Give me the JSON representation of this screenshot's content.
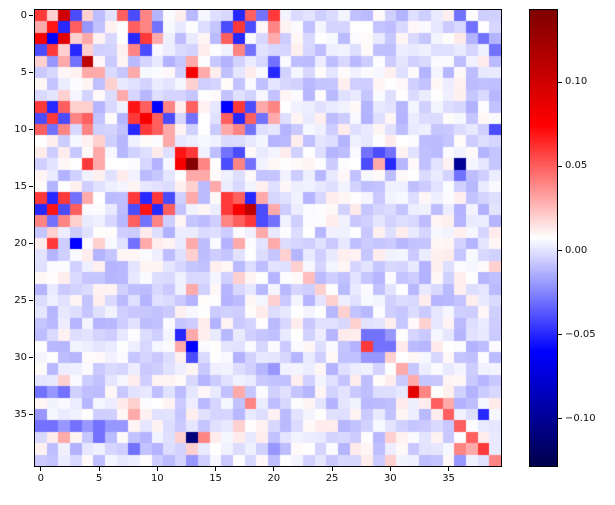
{
  "chart_data": {
    "type": "heatmap",
    "title": "",
    "xlabel": "",
    "ylabel": "",
    "colormap": "seismic",
    "size": 40,
    "vmin": -0.128,
    "vmax": 0.143,
    "grid": false,
    "xticks": [
      0,
      5,
      10,
      15,
      20,
      25,
      30,
      35
    ],
    "yticks": [
      0,
      5,
      10,
      15,
      20,
      25,
      30,
      35
    ],
    "colorbar_ticks": [
      0.1,
      0.05,
      0.0,
      -0.05,
      -0.1
    ],
    "colorbar_tick_labels": [
      "0.10",
      "0.05",
      "0.00",
      "−0.05",
      "−0.10"
    ],
    "default_value": 0.0,
    "noise_amplitude": 0.013,
    "noise_seed": 12345,
    "cells": [
      [
        0,
        0,
        0.06
      ],
      [
        0,
        1,
        0.02
      ],
      [
        0,
        2,
        0.1
      ],
      [
        0,
        3,
        -0.04
      ],
      [
        0,
        4,
        0.02
      ],
      [
        1,
        0,
        0.03
      ],
      [
        1,
        1,
        0.07
      ],
      [
        1,
        2,
        -0.05
      ],
      [
        1,
        3,
        0.05
      ],
      [
        1,
        4,
        -0.02
      ],
      [
        2,
        0,
        0.08
      ],
      [
        2,
        1,
        -0.06
      ],
      [
        2,
        2,
        0.09
      ],
      [
        2,
        3,
        0.02
      ],
      [
        2,
        4,
        0.03
      ],
      [
        3,
        0,
        -0.04
      ],
      [
        3,
        1,
        0.06
      ],
      [
        3,
        2,
        0.02
      ],
      [
        3,
        3,
        -0.05
      ],
      [
        3,
        4,
        0.02
      ],
      [
        4,
        0,
        0.02
      ],
      [
        4,
        1,
        -0.02
      ],
      [
        4,
        2,
        0.03
      ],
      [
        4,
        3,
        -0.03
      ],
      [
        4,
        4,
        0.11
      ],
      [
        0,
        7,
        0.05
      ],
      [
        0,
        8,
        -0.04
      ],
      [
        0,
        9,
        0.04
      ],
      [
        0,
        17,
        -0.05
      ],
      [
        0,
        18,
        0.05
      ],
      [
        0,
        19,
        -0.03
      ],
      [
        0,
        20,
        0.06
      ],
      [
        0,
        36,
        -0.03
      ],
      [
        1,
        8,
        0.05
      ],
      [
        1,
        9,
        0.04
      ],
      [
        1,
        10,
        -0.03
      ],
      [
        1,
        16,
        -0.04
      ],
      [
        1,
        17,
        0.06
      ],
      [
        1,
        18,
        -0.04
      ],
      [
        1,
        20,
        0.04
      ],
      [
        1,
        37,
        -0.03
      ],
      [
        2,
        8,
        -0.05
      ],
      [
        2,
        9,
        0.06
      ],
      [
        2,
        10,
        0.03
      ],
      [
        2,
        16,
        0.05
      ],
      [
        2,
        17,
        -0.05
      ],
      [
        2,
        20,
        0.03
      ],
      [
        2,
        38,
        -0.03
      ],
      [
        3,
        8,
        0.04
      ],
      [
        3,
        9,
        -0.04
      ],
      [
        3,
        17,
        0.04
      ],
      [
        3,
        18,
        -0.03
      ],
      [
        3,
        39,
        -0.03
      ],
      [
        4,
        13,
        0.03
      ],
      [
        4,
        20,
        -0.03
      ],
      [
        5,
        4,
        0.03
      ],
      [
        5,
        5,
        0.03
      ],
      [
        5,
        8,
        0.03
      ],
      [
        5,
        13,
        0.08
      ],
      [
        5,
        14,
        0.03
      ],
      [
        5,
        20,
        -0.05
      ],
      [
        6,
        6,
        0.02
      ],
      [
        6,
        13,
        0.02
      ],
      [
        7,
        2,
        0.02
      ],
      [
        7,
        7,
        0.03
      ],
      [
        8,
        0,
        0.06
      ],
      [
        8,
        1,
        -0.05
      ],
      [
        8,
        2,
        0.05
      ],
      [
        8,
        3,
        0.02
      ],
      [
        8,
        4,
        0.02
      ],
      [
        9,
        0,
        -0.04
      ],
      [
        9,
        1,
        0.06
      ],
      [
        9,
        2,
        -0.04
      ],
      [
        9,
        3,
        0.04
      ],
      [
        9,
        4,
        0.05
      ],
      [
        10,
        0,
        0.05
      ],
      [
        10,
        1,
        -0.03
      ],
      [
        10,
        2,
        0.04
      ],
      [
        10,
        4,
        0.04
      ],
      [
        8,
        8,
        0.07
      ],
      [
        8,
        9,
        0.05
      ],
      [
        8,
        10,
        -0.06
      ],
      [
        8,
        11,
        0.04
      ],
      [
        9,
        8,
        0.06
      ],
      [
        9,
        9,
        0.08
      ],
      [
        9,
        10,
        0.05
      ],
      [
        9,
        11,
        -0.04
      ],
      [
        10,
        8,
        -0.05
      ],
      [
        10,
        9,
        0.06
      ],
      [
        10,
        10,
        0.05
      ],
      [
        10,
        11,
        0.03
      ],
      [
        8,
        13,
        0.05
      ],
      [
        9,
        13,
        -0.03
      ],
      [
        8,
        16,
        -0.06
      ],
      [
        8,
        17,
        0.06
      ],
      [
        8,
        18,
        -0.04
      ],
      [
        8,
        19,
        0.03
      ],
      [
        9,
        16,
        0.05
      ],
      [
        9,
        17,
        -0.05
      ],
      [
        9,
        18,
        0.05
      ],
      [
        9,
        19,
        -0.03
      ],
      [
        10,
        16,
        0.03
      ],
      [
        10,
        17,
        0.04
      ],
      [
        10,
        18,
        -0.03
      ],
      [
        8,
        20,
        0.04
      ],
      [
        9,
        20,
        0.03
      ],
      [
        10,
        39,
        -0.04
      ],
      [
        11,
        5,
        0.02
      ],
      [
        11,
        11,
        0.03
      ],
      [
        12,
        5,
        0.03
      ],
      [
        12,
        12,
        0.07
      ],
      [
        12,
        13,
        0.06
      ],
      [
        12,
        16,
        -0.03
      ],
      [
        12,
        17,
        -0.04
      ],
      [
        12,
        28,
        -0.03
      ],
      [
        12,
        29,
        -0.04
      ],
      [
        12,
        30,
        -0.03
      ],
      [
        13,
        4,
        0.06
      ],
      [
        13,
        5,
        0.03
      ],
      [
        13,
        12,
        0.08
      ],
      [
        13,
        13,
        0.14
      ],
      [
        13,
        14,
        0.04
      ],
      [
        13,
        16,
        -0.04
      ],
      [
        13,
        17,
        0.04
      ],
      [
        13,
        18,
        -0.03
      ],
      [
        13,
        28,
        -0.04
      ],
      [
        13,
        29,
        0.03
      ],
      [
        13,
        30,
        -0.05
      ],
      [
        13,
        36,
        -0.1
      ],
      [
        14,
        13,
        0.03
      ],
      [
        14,
        14,
        0.03
      ],
      [
        14,
        36,
        -0.03
      ],
      [
        15,
        13,
        0.02
      ],
      [
        15,
        15,
        0.03
      ],
      [
        16,
        0,
        0.06
      ],
      [
        16,
        1,
        -0.05
      ],
      [
        16,
        2,
        0.06
      ],
      [
        16,
        3,
        -0.03
      ],
      [
        16,
        4,
        0.03
      ],
      [
        17,
        0,
        -0.05
      ],
      [
        17,
        1,
        0.07
      ],
      [
        17,
        2,
        -0.04
      ],
      [
        17,
        3,
        0.05
      ],
      [
        18,
        0,
        0.04
      ],
      [
        18,
        1,
        -0.03
      ],
      [
        18,
        2,
        0.04
      ],
      [
        18,
        3,
        0.02
      ],
      [
        16,
        8,
        0.06
      ],
      [
        16,
        9,
        -0.05
      ],
      [
        16,
        10,
        0.06
      ],
      [
        16,
        11,
        -0.04
      ],
      [
        17,
        8,
        -0.04
      ],
      [
        17,
        9,
        0.07
      ],
      [
        17,
        10,
        -0.05
      ],
      [
        17,
        11,
        0.05
      ],
      [
        18,
        8,
        0.05
      ],
      [
        18,
        9,
        -0.03
      ],
      [
        18,
        10,
        0.04
      ],
      [
        16,
        13,
        0.03
      ],
      [
        16,
        16,
        0.06
      ],
      [
        16,
        17,
        0.05
      ],
      [
        16,
        18,
        -0.05
      ],
      [
        16,
        19,
        0.03
      ],
      [
        17,
        16,
        0.06
      ],
      [
        17,
        17,
        0.08
      ],
      [
        17,
        18,
        0.11
      ],
      [
        17,
        19,
        -0.04
      ],
      [
        18,
        16,
        0.04
      ],
      [
        18,
        17,
        0.05
      ],
      [
        18,
        18,
        0.06
      ],
      [
        18,
        19,
        -0.04
      ],
      [
        17,
        20,
        0.03
      ],
      [
        18,
        20,
        -0.03
      ],
      [
        19,
        1,
        0.02
      ],
      [
        19,
        19,
        0.03
      ],
      [
        20,
        1,
        0.06
      ],
      [
        20,
        3,
        -0.06
      ],
      [
        20,
        5,
        0.02
      ],
      [
        20,
        8,
        -0.03
      ],
      [
        20,
        9,
        0.03
      ],
      [
        20,
        13,
        0.03
      ],
      [
        20,
        17,
        0.03
      ],
      [
        20,
        20,
        0.03
      ],
      [
        21,
        13,
        0.02
      ],
      [
        21,
        21,
        0.02
      ],
      [
        22,
        22,
        0.02
      ],
      [
        22,
        39,
        0.02
      ],
      [
        23,
        17,
        0.02
      ],
      [
        23,
        23,
        0.025
      ],
      [
        24,
        13,
        0.03
      ],
      [
        24,
        24,
        0.02
      ],
      [
        25,
        20,
        0.02
      ],
      [
        25,
        25,
        0.02
      ],
      [
        26,
        26,
        0.02
      ],
      [
        27,
        27,
        0.02
      ],
      [
        27,
        33,
        0.02
      ],
      [
        28,
        12,
        -0.05
      ],
      [
        28,
        13,
        0.03
      ],
      [
        28,
        28,
        -0.03
      ],
      [
        28,
        29,
        -0.03
      ],
      [
        28,
        30,
        -0.02
      ],
      [
        29,
        12,
        0.03
      ],
      [
        29,
        13,
        -0.06
      ],
      [
        29,
        28,
        0.06
      ],
      [
        29,
        29,
        -0.03
      ],
      [
        29,
        30,
        -0.03
      ],
      [
        30,
        13,
        -0.04
      ],
      [
        30,
        28,
        -0.02
      ],
      [
        30,
        29,
        -0.02
      ],
      [
        30,
        30,
        0.02
      ],
      [
        31,
        20,
        -0.02
      ],
      [
        31,
        31,
        0.03
      ],
      [
        32,
        2,
        0.02
      ],
      [
        32,
        32,
        0.03
      ],
      [
        33,
        0,
        -0.03
      ],
      [
        33,
        1,
        -0.02
      ],
      [
        33,
        2,
        -0.03
      ],
      [
        33,
        17,
        0.03
      ],
      [
        33,
        32,
        0.09
      ],
      [
        33,
        33,
        0.04
      ],
      [
        34,
        8,
        0.02
      ],
      [
        34,
        18,
        0.04
      ],
      [
        34,
        34,
        0.05
      ],
      [
        34,
        35,
        0.03
      ],
      [
        35,
        0,
        -0.02
      ],
      [
        35,
        8,
        0.03
      ],
      [
        35,
        35,
        0.05
      ],
      [
        35,
        38,
        -0.05
      ],
      [
        36,
        0,
        -0.03
      ],
      [
        36,
        1,
        -0.03
      ],
      [
        36,
        2,
        -0.02
      ],
      [
        36,
        3,
        -0.03
      ],
      [
        36,
        4,
        -0.02
      ],
      [
        36,
        5,
        -0.03
      ],
      [
        36,
        6,
        -0.02
      ],
      [
        36,
        7,
        -0.02
      ],
      [
        36,
        17,
        0.02
      ],
      [
        36,
        36,
        0.05
      ],
      [
        37,
        2,
        0.03
      ],
      [
        37,
        5,
        -0.03
      ],
      [
        37,
        12,
        0.02
      ],
      [
        37,
        13,
        -0.11
      ],
      [
        37,
        14,
        0.04
      ],
      [
        37,
        30,
        0.02
      ],
      [
        37,
        37,
        0.05
      ],
      [
        38,
        8,
        -0.03
      ],
      [
        38,
        13,
        0.02
      ],
      [
        38,
        20,
        -0.02
      ],
      [
        38,
        36,
        0.04
      ],
      [
        38,
        37,
        0.03
      ],
      [
        38,
        38,
        0.06
      ],
      [
        39,
        13,
        -0.02
      ],
      [
        39,
        30,
        0.02
      ],
      [
        39,
        36,
        -0.02
      ],
      [
        39,
        39,
        0.04
      ]
    ]
  }
}
